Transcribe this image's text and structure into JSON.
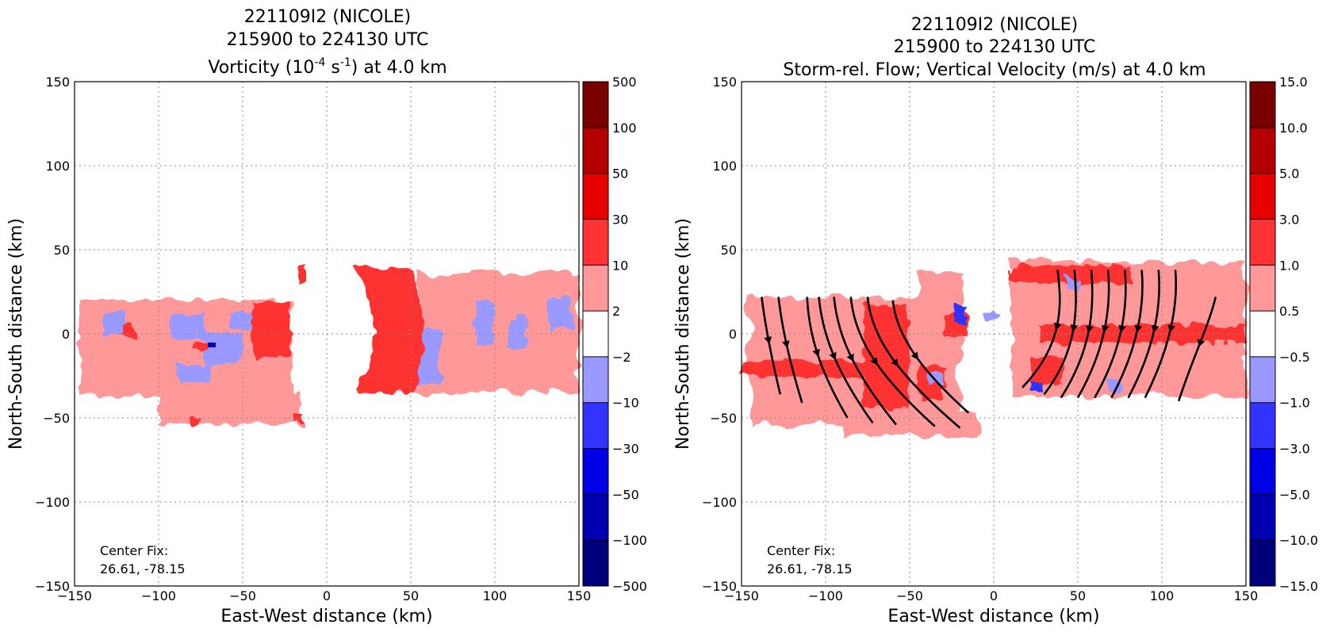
{
  "panels": [
    {
      "id": "vorticity",
      "title_lines": [
        "221109I2 (NICOLE)",
        "215900 to 224130 UTC"
      ],
      "title3_pre": "Vorticity (10",
      "title3_sup1": "-4",
      "title3_mid": " s",
      "title3_sup2": "-1",
      "title3_post": ") at 4.0 km",
      "xlabel": "East-West distance (km)",
      "ylabel": "North-South distance (km)",
      "center_fix_label": "Center Fix:",
      "center_fix_value": "26.61, -78.15",
      "colorbar": {
        "ticks": [
          "500",
          "100",
          "50",
          "30",
          "10",
          "2",
          "−2",
          "−10",
          "−30",
          "−50",
          "−100",
          "−500"
        ],
        "colors": [
          "#7a0000",
          "#b30000",
          "#e60000",
          "#ff3333",
          "#ff9999",
          "#ffffff",
          "#9999ff",
          "#3333ff",
          "#0000e6",
          "#0000b3",
          "#00007a"
        ]
      }
    },
    {
      "id": "vertical-velocity",
      "title_lines": [
        "221109I2 (NICOLE)",
        "215900 to 224130 UTC",
        "Storm-rel. Flow; Vertical Velocity (m/s) at 4.0 km"
      ],
      "xlabel": "East-West distance (km)",
      "ylabel": "North-South distance (km)",
      "center_fix_label": "Center Fix:",
      "center_fix_value": "26.61, -78.15",
      "colorbar": {
        "ticks": [
          "15.0",
          "10.0",
          "5.0",
          "3.0",
          "1.0",
          "0.5",
          "−0.5",
          "−1.0",
          "−3.0",
          "−5.0",
          "−10.0",
          "−15.0"
        ],
        "colors": [
          "#7a0000",
          "#b30000",
          "#e60000",
          "#ff3333",
          "#ff9999",
          "#ffffff",
          "#9999ff",
          "#3333ff",
          "#0000e6",
          "#0000b3",
          "#00007a"
        ]
      }
    }
  ],
  "axes": {
    "xlim": [
      -150,
      150
    ],
    "ylim": [
      -150,
      150
    ],
    "ticks": [
      -150,
      -100,
      -50,
      0,
      50,
      100,
      150
    ],
    "tick_labels": [
      "−150",
      "−100",
      "−50",
      "0",
      "50",
      "100",
      "150"
    ],
    "grid": "dotted"
  },
  "chart_data": [
    {
      "type": "heatmap",
      "title": "221109I2 (NICOLE) 215900 to 224130 UTC Vorticity (10^-4 s^-1) at 4.0 km",
      "xlabel": "East-West distance (km)",
      "ylabel": "North-South distance (km)",
      "xlim": [
        -150,
        150
      ],
      "ylim": [
        -150,
        150
      ],
      "grid": true,
      "levels": [
        -500,
        -100,
        -50,
        -30,
        -10,
        -2,
        2,
        10,
        30,
        50,
        100,
        500
      ],
      "regions": [
        {
          "band": "2 to 10",
          "x": [
            -148,
            -20
          ],
          "y": [
            -58,
            20
          ]
        },
        {
          "band": "10 to 30",
          "x": [
            -50,
            -25
          ],
          "y": [
            -25,
            20
          ]
        },
        {
          "band": "-10 to -2",
          "x": [
            -140,
            -55
          ],
          "y": [
            -35,
            20
          ]
        },
        {
          "band": "10 to 30",
          "x": [
            10,
            55
          ],
          "y": [
            -35,
            42
          ]
        },
        {
          "band": "2 to 10",
          "x": [
            40,
            150
          ],
          "y": [
            -36,
            38
          ]
        },
        {
          "band": "-10 to -2",
          "x": [
            50,
            150
          ],
          "y": [
            -30,
            35
          ]
        }
      ]
    },
    {
      "type": "heatmap",
      "title": "221109I2 (NICOLE) 215900 to 224130 UTC Storm-rel. Flow; Vertical Velocity (m/s) at 4.0 km",
      "xlabel": "East-West distance (km)",
      "ylabel": "North-South distance (km)",
      "xlim": [
        -150,
        150
      ],
      "ylim": [
        -150,
        150
      ],
      "grid": true,
      "levels": [
        -15.0,
        -10.0,
        -5.0,
        -3.0,
        -1.0,
        -0.5,
        0.5,
        1.0,
        3.0,
        5.0,
        10.0,
        15.0
      ],
      "regions": [
        {
          "band": "0.5 to 1.0",
          "x": [
            -150,
            -10
          ],
          "y": [
            -60,
            22
          ]
        },
        {
          "band": "1.0 to 3.0",
          "x": [
            -150,
            -60
          ],
          "y": [
            -25,
            -15
          ]
        },
        {
          "band": "1.0 to 3.0",
          "x": [
            -80,
            -35
          ],
          "y": [
            -45,
            20
          ]
        },
        {
          "band": "0.5 to 1.0",
          "x": [
            15,
            150
          ],
          "y": [
            -40,
            45
          ]
        },
        {
          "band": "1.0 to 3.0",
          "x": [
            35,
            150
          ],
          "y": [
            -5,
            8
          ]
        },
        {
          "band": "-1.0 to -0.5",
          "x": [
            -30,
            10
          ],
          "y": [
            -10,
            10
          ]
        }
      ],
      "streamlines": [
        {
          "x": [
            -138,
            -136,
            -132,
            -127
          ],
          "y": [
            22,
            5,
            -15,
            -36
          ]
        },
        {
          "x": [
            -128,
            -126,
            -121,
            -114
          ],
          "y": [
            22,
            3,
            -18,
            -41
          ]
        },
        {
          "x": [
            -111,
            -110,
            -104,
            -87
          ],
          "y": [
            22,
            0,
            -21,
            -50
          ]
        },
        {
          "x": [
            -104,
            -102,
            -94,
            -72
          ],
          "y": [
            22,
            0,
            -22,
            -53
          ]
        },
        {
          "x": [
            -95,
            -93,
            -84,
            -58
          ],
          "y": [
            22,
            0,
            -22,
            -54
          ]
        },
        {
          "x": [
            -85,
            -83,
            -72,
            -35
          ],
          "y": [
            22,
            0,
            -22,
            -55
          ]
        },
        {
          "x": [
            -75,
            -73,
            -60,
            -20
          ],
          "y": [
            22,
            0,
            -22,
            -56
          ]
        },
        {
          "x": [
            -60,
            -58,
            -45,
            -15
          ],
          "y": [
            20,
            0,
            -20,
            -47
          ]
        },
        {
          "x": [
            38,
            40,
            43,
            17
          ],
          "y": [
            38,
            20,
            -5,
            -32
          ]
        },
        {
          "x": [
            48,
            50,
            50,
            30
          ],
          "y": [
            38,
            15,
            -10,
            -36
          ]
        },
        {
          "x": [
            58,
            60,
            58,
            40
          ],
          "y": [
            38,
            15,
            -10,
            -38
          ]
        },
        {
          "x": [
            68,
            70,
            66,
            50
          ],
          "y": [
            38,
            15,
            -10,
            -38
          ]
        },
        {
          "x": [
            78,
            80,
            76,
            60
          ],
          "y": [
            38,
            15,
            -10,
            -38
          ]
        },
        {
          "x": [
            88,
            90,
            85,
            70
          ],
          "y": [
            38,
            15,
            -10,
            -38
          ]
        },
        {
          "x": [
            98,
            100,
            95,
            80
          ],
          "y": [
            38,
            15,
            -10,
            -38
          ]
        },
        {
          "x": [
            108,
            110,
            104,
            90
          ],
          "y": [
            38,
            15,
            -10,
            -38
          ]
        },
        {
          "x": [
            132,
            128,
            118,
            110
          ],
          "y": [
            22,
            5,
            -15,
            -40
          ]
        }
      ]
    }
  ]
}
